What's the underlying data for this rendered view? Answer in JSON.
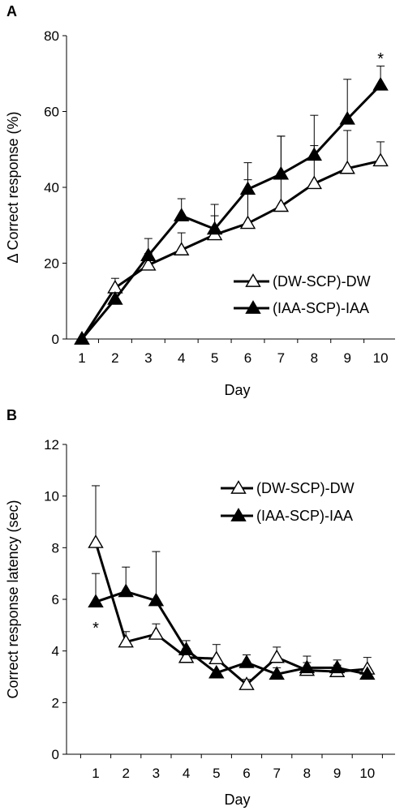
{
  "chart_data": [
    {
      "panel": "A",
      "type": "line",
      "ylabel": "Δ Correct response (%)",
      "xlabel": "Day",
      "x": [
        1,
        2,
        3,
        4,
        5,
        6,
        7,
        8,
        9,
        10
      ],
      "xlim": [
        0.5,
        10.5
      ],
      "ylim": [
        0,
        80
      ],
      "yticks": [
        0,
        20,
        40,
        60,
        80
      ],
      "legend": "center-right",
      "series": [
        {
          "name": "(DW-SCP)-DW",
          "marker": "open-triangle",
          "values": [
            0,
            13.5,
            19.5,
            23.5,
            27.5,
            30.5,
            35,
            41,
            45,
            47
          ],
          "errors": [
            0,
            2.5,
            3,
            4.5,
            5,
            11.5,
            18.5,
            10,
            10,
            5
          ]
        },
        {
          "name": "(IAA-SCP)-IAA",
          "marker": "filled-triangle",
          "values": [
            0,
            10.5,
            22,
            32.5,
            29,
            39.5,
            43.5,
            48.5,
            58,
            67
          ],
          "errors": [
            0,
            0,
            4.5,
            4.5,
            6.5,
            7,
            10,
            10.5,
            10.5,
            5
          ]
        }
      ],
      "annotations": [
        {
          "text": "*",
          "x": 10,
          "y": 74
        }
      ]
    },
    {
      "panel": "B",
      "type": "line",
      "ylabel": "Correct response latency (sec)",
      "xlabel": "Day",
      "x": [
        1,
        2,
        3,
        4,
        5,
        6,
        7,
        8,
        9,
        10
      ],
      "xlim": [
        0.5,
        10.5
      ],
      "ylim": [
        0,
        12
      ],
      "yticks": [
        0,
        2,
        4,
        6,
        8,
        10,
        12
      ],
      "legend": "top-right",
      "series": [
        {
          "name": "(DW-SCP)-DW",
          "marker": "open-triangle",
          "values": [
            8.2,
            4.35,
            4.65,
            3.75,
            3.7,
            2.7,
            3.75,
            3.25,
            3.2,
            3.3
          ],
          "errors": [
            2.2,
            0.4,
            0.4,
            0.35,
            0.55,
            0.2,
            0.4,
            0.3,
            0.25,
            0.45
          ]
        },
        {
          "name": "(IAA-SCP)-IAA",
          "marker": "filled-triangle",
          "values": [
            5.9,
            6.3,
            5.95,
            4.05,
            3.15,
            3.55,
            3.1,
            3.35,
            3.35,
            3.1
          ],
          "errors": [
            1.1,
            0.95,
            1.9,
            0.35,
            0,
            0.3,
            0.25,
            0.45,
            0.3,
            0
          ]
        }
      ],
      "annotations": [
        {
          "text": "*",
          "x": 1,
          "y": 4.9
        }
      ]
    }
  ]
}
